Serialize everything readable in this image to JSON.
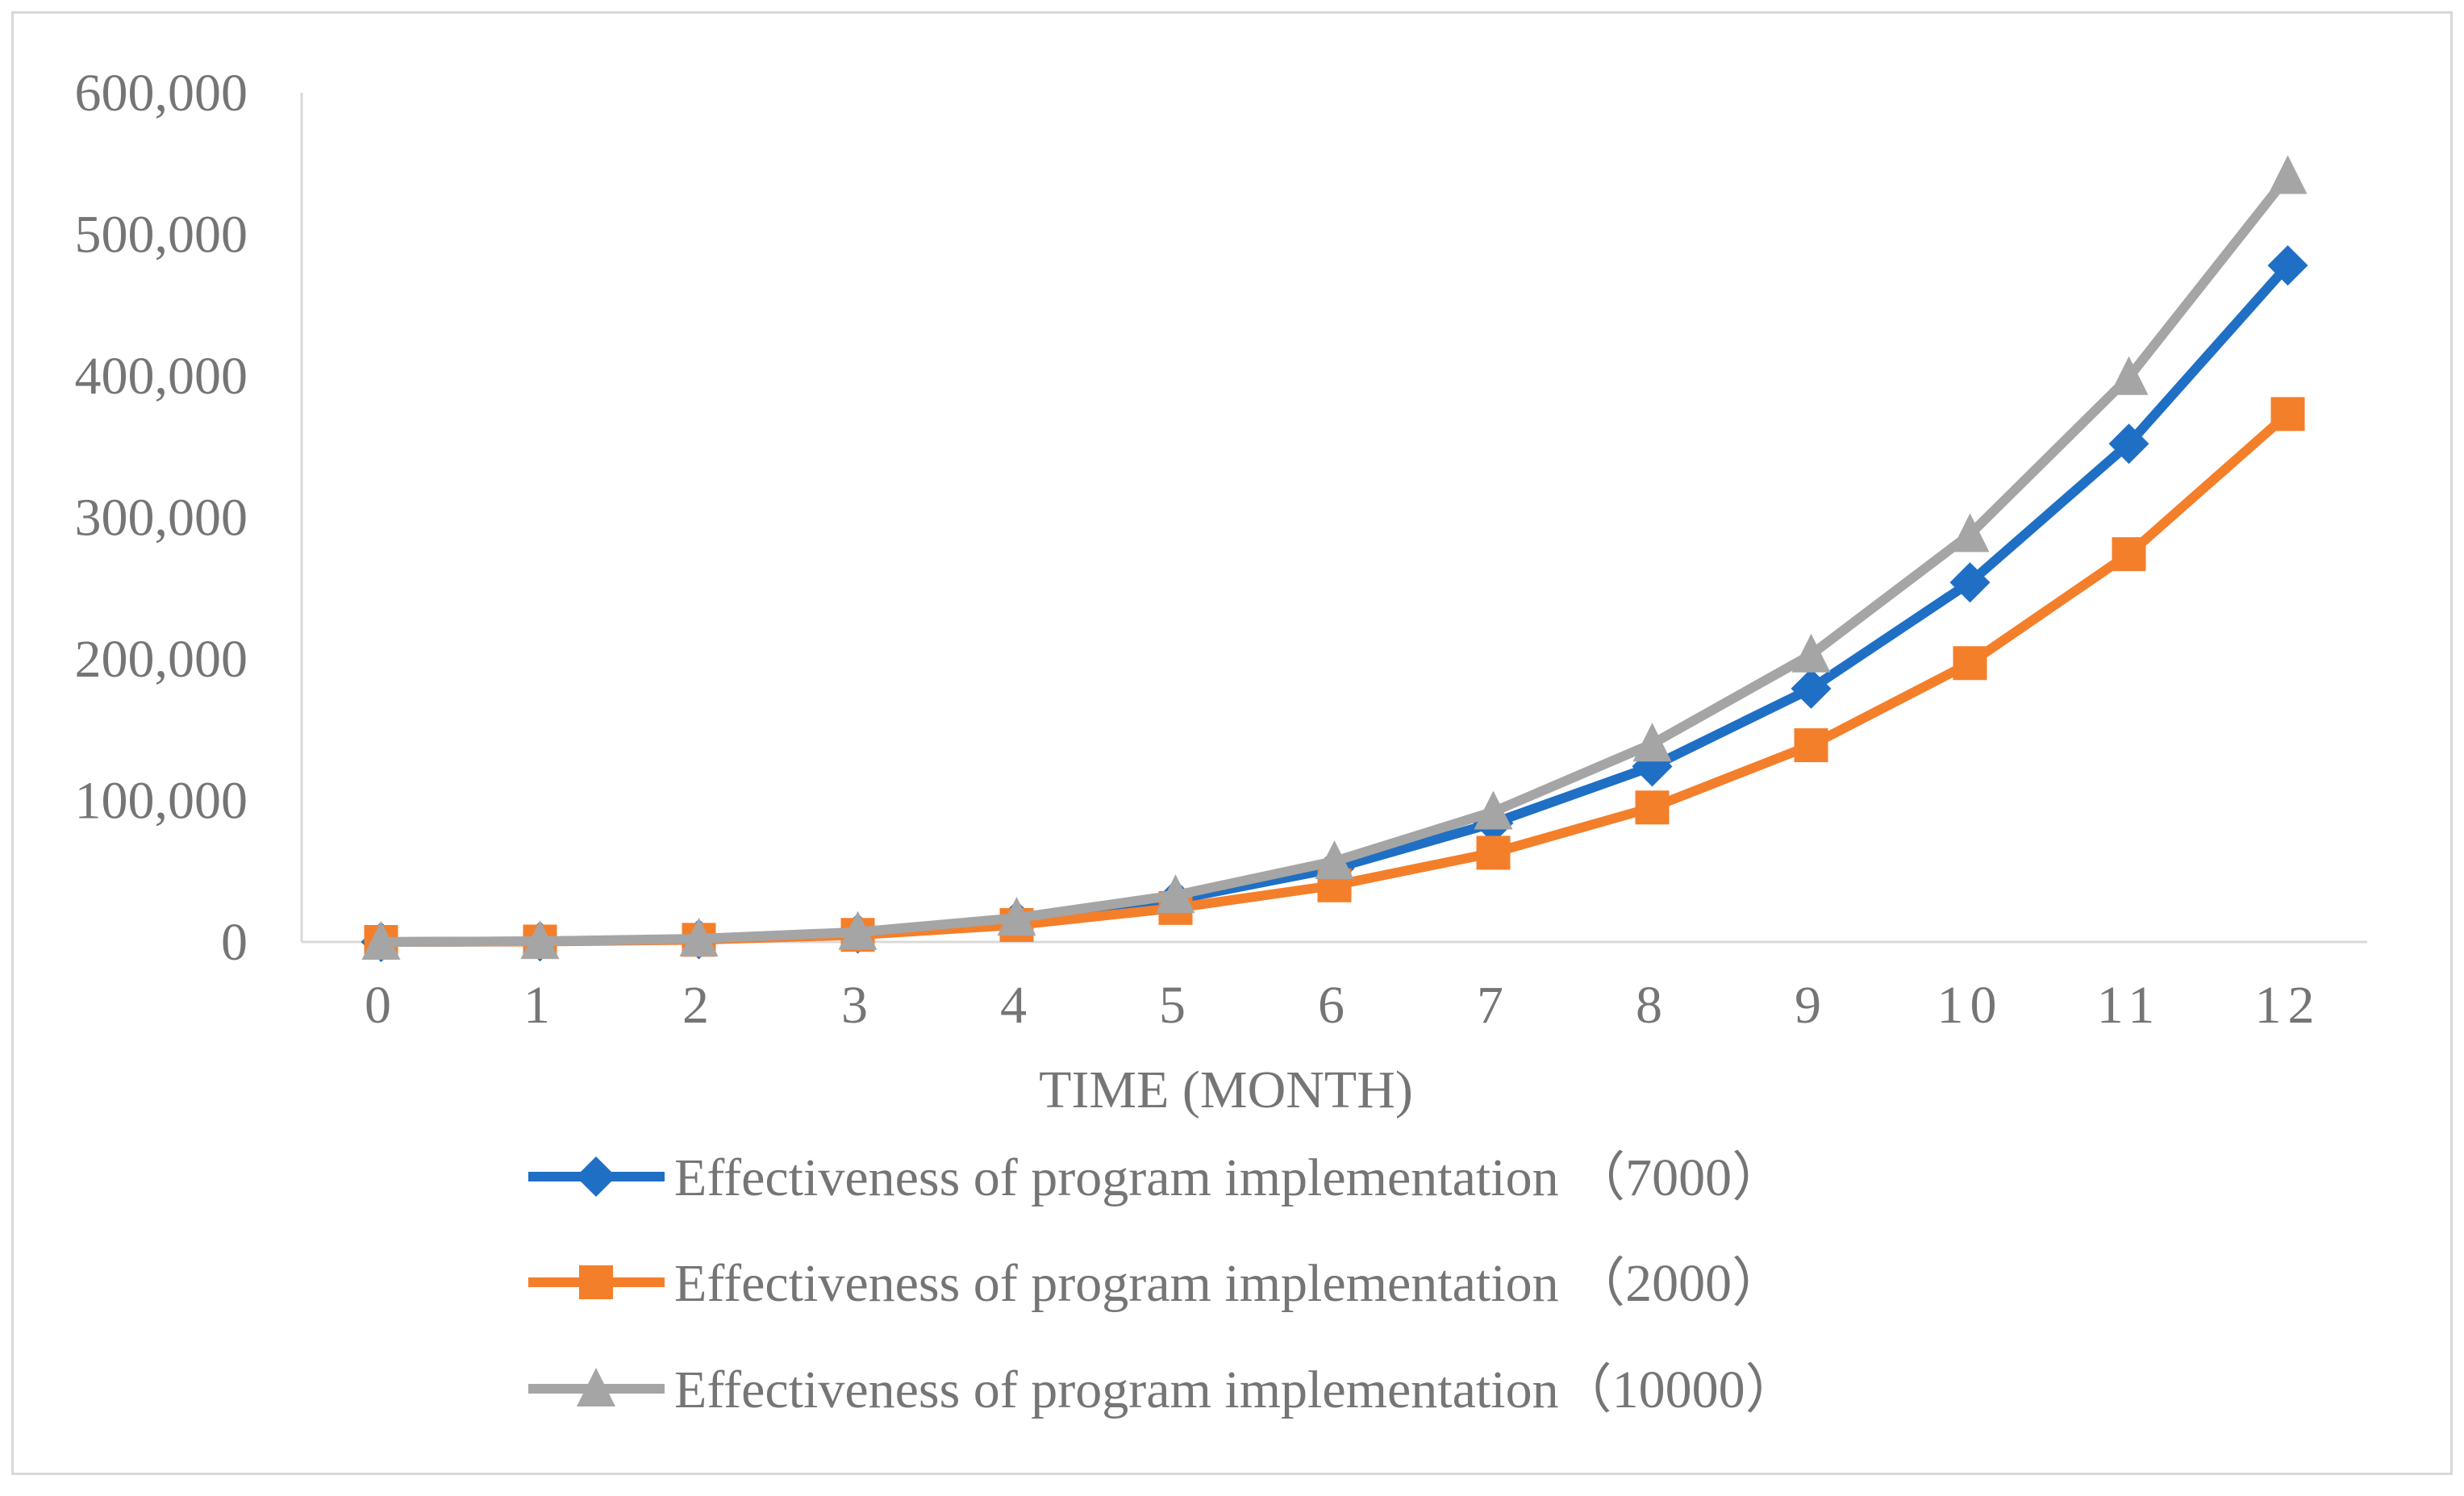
{
  "chart_data": {
    "type": "line",
    "title": "",
    "xlabel": "TIME (MONTH)",
    "ylabel": "",
    "categories": [
      "0",
      "1",
      "2",
      "3",
      "4",
      "5",
      "6",
      "7",
      "8",
      "9",
      "10",
      "11",
      "12"
    ],
    "yticks": [
      "0",
      "100,000",
      "200,000",
      "300,000",
      "400,000",
      "500,000",
      "600,000"
    ],
    "ylim": [
      0,
      600000
    ],
    "grid": false,
    "legend_position": "bottom",
    "series": [
      {
        "name": "Effectiveness of program implementation （7000）",
        "color": "#1f6fc5",
        "marker": "diamond",
        "values": [
          0,
          400,
          2000,
          6000,
          15000,
          30000,
          52000,
          84000,
          124000,
          179000,
          254000,
          352000,
          478000
        ]
      },
      {
        "name": "Effectiveness of program implementation （2000）",
        "color": "#f47f2a",
        "marker": "square",
        "values": [
          0,
          300,
          1500,
          5000,
          12000,
          24000,
          40000,
          63000,
          95000,
          139000,
          197000,
          274000,
          373000
        ]
      },
      {
        "name": "Effectiveness of program implementation（10000）",
        "color": "#a5a5a5",
        "marker": "triangle",
        "values": [
          0,
          500,
          2300,
          7000,
          17000,
          33000,
          57000,
          92000,
          140000,
          203000,
          288000,
          399000,
          541000
        ]
      }
    ]
  }
}
